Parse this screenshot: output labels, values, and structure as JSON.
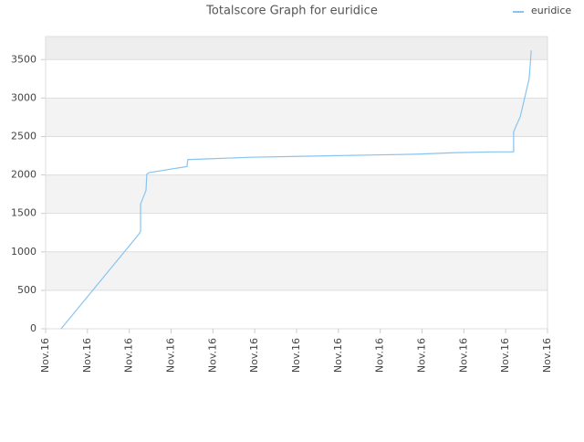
{
  "chart_data": {
    "type": "line",
    "title": "Totalscore Graph for euridice",
    "x": [
      0.37,
      2.23,
      2.27,
      2.27,
      2.4,
      2.42,
      2.47,
      3.38,
      3.4,
      3.93,
      4.91,
      5.89,
      6.87,
      7.86,
      8.84,
      9.82,
      10.69,
      11.19,
      11.19,
      11.26,
      11.35,
      11.56,
      11.59,
      11.61
    ],
    "series": [
      {
        "name": "euridice",
        "color": "#88c4f0",
        "values": [
          0,
          1230,
          1270,
          1620,
          1800,
          2010,
          2030,
          2110,
          2200,
          2210,
          2230,
          2240,
          2250,
          2260,
          2270,
          2290,
          2300,
          2300,
          2560,
          2650,
          2760,
          3250,
          3450,
          3620
        ]
      }
    ],
    "xlim": [
      0,
      12
    ],
    "xticks": [
      {
        "value": 0,
        "label": "Nov.16"
      },
      {
        "value": 1,
        "label": "Nov.16"
      },
      {
        "value": 2,
        "label": "Nov.16"
      },
      {
        "value": 3,
        "label": "Nov.16"
      },
      {
        "value": 4,
        "label": "Nov.16"
      },
      {
        "value": 5,
        "label": "Nov.16"
      },
      {
        "value": 6,
        "label": "Nov.16"
      },
      {
        "value": 7,
        "label": "Nov.16"
      },
      {
        "value": 8,
        "label": "Nov.16"
      },
      {
        "value": 9,
        "label": "Nov.16"
      },
      {
        "value": 10,
        "label": "Nov.16"
      },
      {
        "value": 11,
        "label": "Nov.16"
      },
      {
        "value": 12,
        "label": "Nov.16"
      }
    ],
    "ylim": [
      0,
      3800
    ],
    "yticks": [
      0,
      500,
      1000,
      1500,
      2000,
      2500,
      3000,
      3500
    ],
    "grid": true,
    "legend": "top-right"
  }
}
